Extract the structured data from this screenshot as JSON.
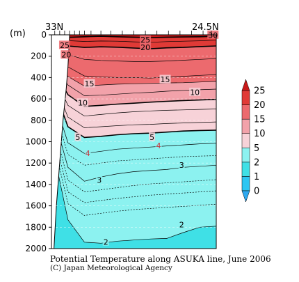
{
  "chart_data": {
    "type": "heatmap",
    "title": "Potential Temperature along ASUKA line, June 2006",
    "credit": "(C) Japan Meteorological Agency",
    "x_start_label": "33N",
    "x_end_label": "24.5N",
    "ylabel": "(m)",
    "ylim": [
      2000,
      0
    ],
    "y_ticks": [
      0,
      200,
      400,
      600,
      800,
      1000,
      1200,
      1400,
      1600,
      1800,
      2000
    ],
    "grid": true,
    "colorbar": {
      "levels": [
        0,
        1,
        2,
        5,
        10,
        15,
        20,
        25
      ],
      "colors": [
        "#2da9f0",
        "#2cc6f2",
        "#3fe0e6",
        "#8cf2f0",
        "#f7d2d8",
        "#f2a2aa",
        "#ec6a6e",
        "#e03a36",
        "#c81818"
      ]
    },
    "contour_labels": [
      {
        "text": "30",
        "x": 0.98,
        "depth": 5
      },
      {
        "text": "25",
        "x": 0.57,
        "depth": 50
      },
      {
        "text": "20",
        "x": 0.57,
        "depth": 120
      },
      {
        "text": "25",
        "x": 0.08,
        "depth": 100
      },
      {
        "text": "20",
        "x": 0.09,
        "depth": 190
      },
      {
        "text": "15",
        "x": 0.23,
        "depth": 460
      },
      {
        "text": "15",
        "x": 0.69,
        "depth": 420
      },
      {
        "text": "10",
        "x": 0.19,
        "depth": 640
      },
      {
        "text": "10",
        "x": 0.87,
        "depth": 540
      },
      {
        "text": "5",
        "x": 0.16,
        "depth": 960
      },
      {
        "text": "5",
        "x": 0.61,
        "depth": 960
      },
      {
        "text": "4",
        "x": 0.22,
        "depth": 1110
      },
      {
        "text": "4",
        "x": 0.65,
        "depth": 1040
      },
      {
        "text": "3",
        "x": 0.29,
        "depth": 1360
      },
      {
        "text": "3",
        "x": 0.79,
        "depth": 1220
      },
      {
        "text": "2",
        "x": 0.33,
        "depth": 1940
      },
      {
        "text": "2",
        "x": 0.79,
        "depth": 1780
      }
    ],
    "isotherms": [
      {
        "value": 25,
        "depth": [
          10,
          24,
          18,
          14,
          18,
          22,
          26,
          22,
          20,
          18,
          14
        ]
      },
      {
        "value": 22,
        "depth": [
          40,
          55,
          62,
          58,
          60,
          66,
          70,
          64,
          60,
          56,
          50
        ]
      },
      {
        "value": 20,
        "depth": [
          80,
          104,
          118,
          112,
          116,
          124,
          130,
          122,
          118,
          110,
          104
        ]
      },
      {
        "value": 18,
        "depth": [
          130,
          185,
          230,
          240,
          245,
          250,
          250,
          245,
          238,
          230,
          222
        ]
      },
      {
        "value": 16,
        "depth": [
          170,
          300,
          385,
          395,
          400,
          400,
          405,
          395,
          388,
          380,
          372
        ]
      },
      {
        "value": 14,
        "depth": [
          200,
          390,
          480,
          470,
          462,
          458,
          455,
          450,
          448,
          442,
          436
        ]
      },
      {
        "value": 12,
        "depth": [
          240,
          470,
          570,
          565,
          555,
          545,
          538,
          528,
          520,
          514,
          508
        ]
      },
      {
        "value": 10,
        "depth": [
          280,
          560,
          670,
          660,
          648,
          640,
          630,
          622,
          615,
          610,
          604
        ]
      },
      {
        "value": 8,
        "depth": [
          330,
          660,
          760,
          745,
          730,
          720,
          712,
          706,
          702,
          698,
          694
        ]
      },
      {
        "value": 6,
        "depth": [
          380,
          770,
          870,
          860,
          850,
          842,
          838,
          830,
          825,
          820,
          815
        ]
      },
      {
        "value": 5,
        "depth": [
          430,
          860,
          960,
          950,
          935,
          925,
          920,
          910,
          900,
          895,
          892
        ]
      },
      {
        "value": 4,
        "depth": [
          520,
          1010,
          1110,
          1090,
          1070,
          1060,
          1050,
          1040,
          1030,
          1020,
          1015
        ]
      },
      {
        "value": 3.5,
        "depth": [
          600,
          1120,
          1220,
          1200,
          1180,
          1170,
          1160,
          1150,
          1140,
          1135,
          1130
        ]
      },
      {
        "value": 3,
        "depth": [
          680,
          1240,
          1370,
          1330,
          1300,
          1280,
          1270,
          1260,
          1240,
          1230,
          1220
        ]
      },
      {
        "value": 2.6,
        "depth": [
          760,
          1360,
          1470,
          1450,
          1430,
          1410,
          1395,
          1385,
          1375,
          1365,
          1355
        ]
      },
      {
        "value": 2.4,
        "depth": [
          840,
          1470,
          1570,
          1550,
          1530,
          1515,
          1500,
          1490,
          1480,
          1470,
          1460
        ]
      },
      {
        "value": 2.2,
        "depth": [
          920,
          1580,
          1690,
          1670,
          1650,
          1635,
          1625,
          1615,
          1605,
          1595,
          1585
        ]
      },
      {
        "value": 2,
        "depth": [
          1000,
          1730,
          1940,
          1950,
          1930,
          1920,
          1910,
          1905,
          1850,
          1800,
          1790
        ]
      }
    ]
  }
}
